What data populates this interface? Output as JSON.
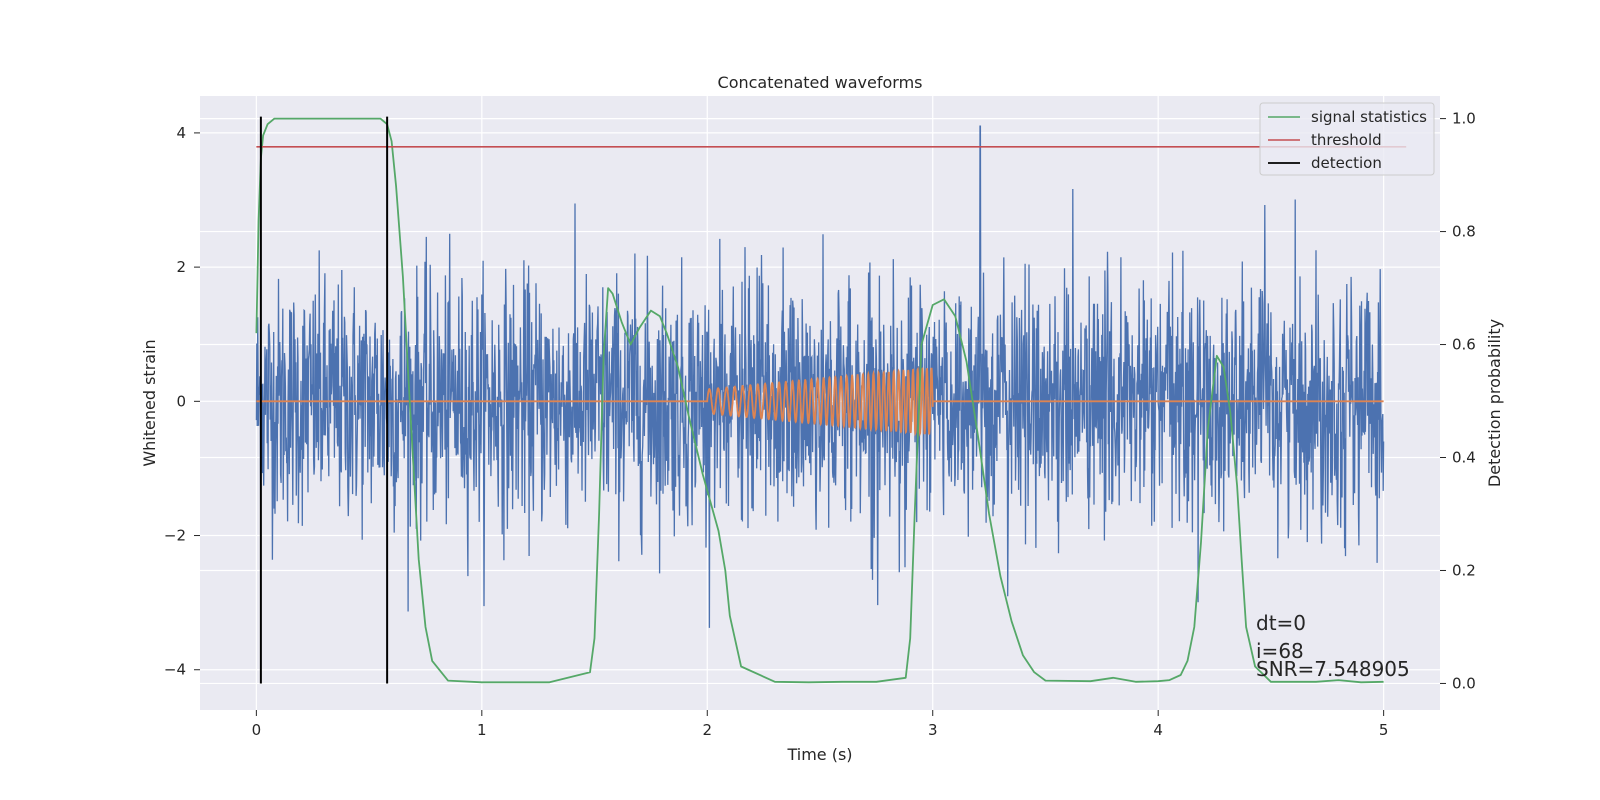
{
  "chart_data": {
    "type": "line",
    "title": "Concatenated waveforms",
    "xlabel": "Time (s)",
    "ylabel_left": "Whitened strain",
    "ylabel_right": "Detection probability",
    "xlim": [
      -0.25,
      5.25
    ],
    "ylim_left": [
      -4.6,
      4.55
    ],
    "ylim_right": [
      -0.047,
      1.04
    ],
    "x_ticks": [
      0,
      1,
      2,
      3,
      4,
      5
    ],
    "x_tick_labels": [
      "0",
      "1",
      "2",
      "3",
      "4",
      "5"
    ],
    "y_left_ticks": [
      -4,
      -2,
      0,
      2,
      4
    ],
    "y_left_tick_labels": [
      "−4",
      "−2",
      "0",
      "2",
      "4"
    ],
    "y_right_ticks": [
      0.0,
      0.2,
      0.4,
      0.6,
      0.8,
      1.0
    ],
    "y_right_tick_labels": [
      "0.0",
      "0.2",
      "0.4",
      "0.6",
      "0.8",
      "1.0"
    ],
    "grid": true,
    "legend_placement": "top-right",
    "colors": {
      "strain": "#4c72b0",
      "template": "#dd8452",
      "signal_statistics": "#55a868",
      "threshold": "#c44e52",
      "detection": "#000000",
      "plot_background": "#eaeaf2",
      "grid": "#ffffff"
    },
    "strain_noise": {
      "x_range": [
        0,
        5
      ],
      "approx_std": 0.9,
      "approx_range": [
        -3.5,
        3.3
      ],
      "spike": {
        "x": 3.21,
        "y": 4.1
      }
    },
    "template": {
      "x_range": [
        2.0,
        3.0
      ],
      "frequency_hz": [
        25,
        50
      ],
      "amplitude": [
        0.18,
        0.5
      ],
      "flat_value": 0
    },
    "series": [
      {
        "name": "signal statistics",
        "axis": "right",
        "x": [
          0.0,
          0.01,
          0.02,
          0.03,
          0.05,
          0.08,
          0.15,
          0.3,
          0.5,
          0.55,
          0.58,
          0.6,
          0.62,
          0.65,
          0.68,
          0.7,
          0.72,
          0.75,
          0.78,
          0.85,
          1.0,
          1.3,
          1.48,
          1.5,
          1.52,
          1.54,
          1.56,
          1.58,
          1.62,
          1.66,
          1.7,
          1.75,
          1.79,
          1.82,
          1.87,
          1.92,
          1.98,
          2.05,
          2.08,
          2.1,
          2.15,
          2.3,
          2.45,
          2.6,
          2.75,
          2.88,
          2.9,
          2.92,
          2.95,
          3.0,
          3.05,
          3.1,
          3.15,
          3.2,
          3.25,
          3.3,
          3.35,
          3.4,
          3.45,
          3.5,
          3.7,
          3.8,
          3.9,
          4.0,
          4.05,
          4.1,
          4.13,
          4.16,
          4.19,
          4.22,
          4.26,
          4.29,
          4.32,
          4.35,
          4.37,
          4.39,
          4.43,
          4.5,
          4.7,
          4.8,
          4.9,
          5.0
        ],
        "y": [
          0.62,
          0.82,
          0.93,
          0.97,
          0.99,
          1.0,
          1.0,
          1.0,
          1.0,
          1.0,
          0.99,
          0.96,
          0.88,
          0.72,
          0.5,
          0.36,
          0.22,
          0.1,
          0.04,
          0.005,
          0.002,
          0.002,
          0.02,
          0.08,
          0.3,
          0.58,
          0.7,
          0.69,
          0.64,
          0.6,
          0.63,
          0.66,
          0.65,
          0.62,
          0.56,
          0.47,
          0.37,
          0.27,
          0.2,
          0.12,
          0.03,
          0.003,
          0.002,
          0.003,
          0.003,
          0.01,
          0.08,
          0.3,
          0.6,
          0.67,
          0.68,
          0.65,
          0.57,
          0.44,
          0.3,
          0.19,
          0.11,
          0.05,
          0.02,
          0.005,
          0.004,
          0.01,
          0.003,
          0.004,
          0.006,
          0.015,
          0.04,
          0.1,
          0.25,
          0.45,
          0.58,
          0.56,
          0.48,
          0.35,
          0.22,
          0.1,
          0.03,
          0.003,
          0.003,
          0.006,
          0.002,
          0.003
        ]
      },
      {
        "name": "threshold",
        "axis": "right",
        "x": [
          0,
          5.1
        ],
        "y": [
          0.95,
          0.95
        ]
      },
      {
        "name": "detection",
        "axis": "right",
        "x_positions": [
          0.02,
          0.58
        ],
        "y_range": [
          0.0,
          1.0
        ]
      }
    ],
    "annotations": [
      "dt=0",
      "i=68",
      "SNR=7.548905"
    ]
  }
}
